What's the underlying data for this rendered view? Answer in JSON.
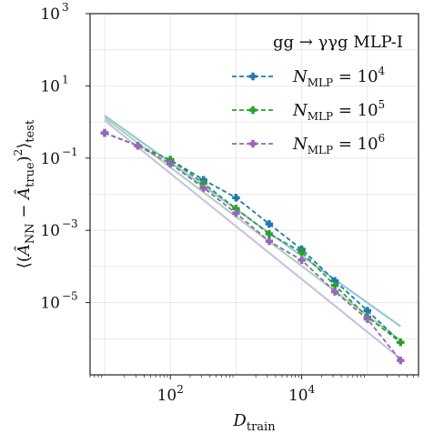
{
  "chart_data": {
    "type": "line",
    "xscale": "log",
    "yscale": "log",
    "xlim": [
      6.0,
      600000
    ],
    "ylim": [
      1e-07,
      1000
    ],
    "xlabel": "D_train",
    "ylabel": "⟨(Â_NN − Â_true)²⟩_test",
    "xticks": [
      {
        "value": 100,
        "mantissa": "10",
        "exp": "2"
      },
      {
        "value": 10000,
        "mantissa": "10",
        "exp": "4"
      }
    ],
    "yticks": [
      {
        "value": 1000,
        "mantissa": "10",
        "exp": "3"
      },
      {
        "value": 10,
        "mantissa": "10",
        "exp": "1"
      },
      {
        "value": 0.1,
        "mantissa": "10",
        "exp": "−1"
      },
      {
        "value": 0.001,
        "mantissa": "10",
        "exp": "−3"
      },
      {
        "value": 1e-05,
        "mantissa": "10",
        "exp": "−5"
      }
    ],
    "grid": true,
    "legend": {
      "title": "gg → γγg MLP-I",
      "position": "upper right",
      "entries": [
        {
          "prefix": "N",
          "sub": "MLP",
          "eq": " = 10",
          "exp": "4"
        },
        {
          "prefix": "N",
          "sub": "MLP",
          "eq": " = 10",
          "exp": "5"
        },
        {
          "prefix": "N",
          "sub": "MLP",
          "eq": " = 10",
          "exp": "6"
        }
      ]
    },
    "x": [
      10,
      32,
      100,
      320,
      1000,
      3200,
      10000,
      32000,
      100000,
      320000
    ],
    "series": [
      {
        "name": "N_MLP = 10^4",
        "color": "#1f77b4",
        "style": "dashed",
        "marker": "plus",
        "values": [
          0.5,
          0.22,
          0.09,
          0.025,
          0.008,
          0.0015,
          0.0003,
          4e-05,
          6e-06,
          8e-07
        ]
      },
      {
        "name": "N_MLP = 10^5",
        "color": "#2ca02c",
        "style": "dashed",
        "marker": "plus",
        "values": [
          0.5,
          0.22,
          0.09,
          0.02,
          0.004,
          0.0008,
          0.00025,
          3e-05,
          4e-06,
          8e-07
        ]
      },
      {
        "name": "N_MLP = 10^6",
        "color": "#9467bd",
        "style": "dashed",
        "marker": "plus",
        "values": [
          0.5,
          0.22,
          0.07,
          0.015,
          0.003,
          0.0005,
          0.00015,
          2e-05,
          3.5e-06,
          2.5e-07
        ]
      }
    ],
    "fit_lines": [
      {
        "color": "#8cc7d4",
        "x": [
          10,
          320000
        ],
        "values": [
          1.5,
          2.2e-06
        ]
      },
      {
        "color": "#a9d3ad",
        "x": [
          10,
          320000
        ],
        "values": [
          1.3,
          9e-07
        ]
      },
      {
        "color": "#c9bde0",
        "x": [
          10,
          320000
        ],
        "values": [
          1.1,
          2.8e-07
        ]
      }
    ]
  }
}
